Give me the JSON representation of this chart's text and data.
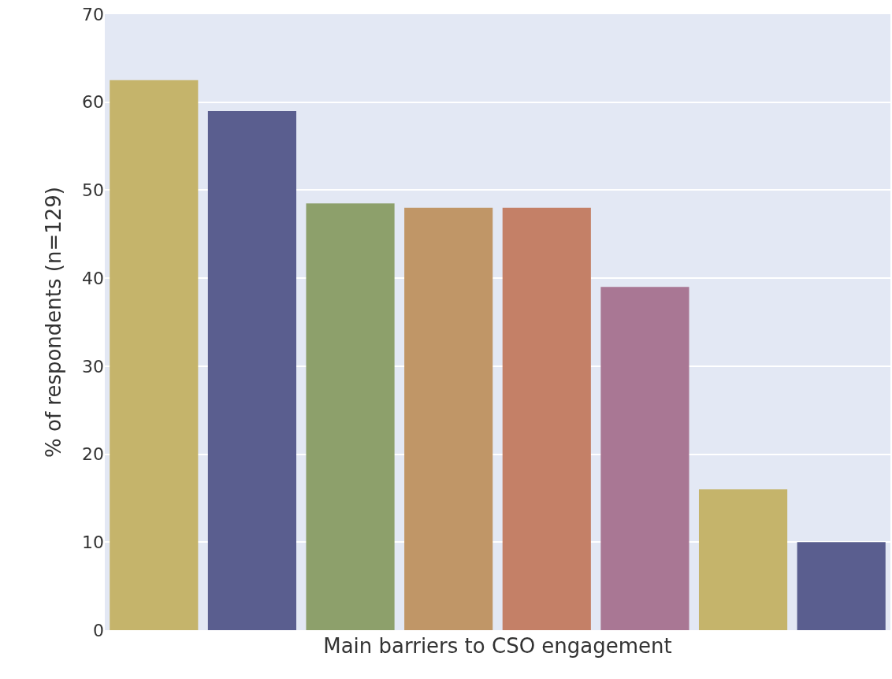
{
  "chart_data": {
    "type": "bar",
    "xlabel": "Main barriers to CSO engagement",
    "ylabel": "% of respondents (n=129)",
    "categories": [
      null,
      null,
      null,
      null,
      null,
      null,
      null,
      null
    ],
    "values": [
      62.5,
      59,
      48.5,
      48,
      48,
      39,
      16,
      10
    ],
    "colors": [
      "#c5b46b",
      "#5a5e8f",
      "#8da06b",
      "#c09667",
      "#c48067",
      "#a97794",
      "#c5b46b",
      "#5a5e8f"
    ],
    "ylim": [
      0,
      70
    ],
    "yticks": [
      0,
      10,
      20,
      30,
      40,
      50,
      60,
      70
    ],
    "grid": "y"
  }
}
